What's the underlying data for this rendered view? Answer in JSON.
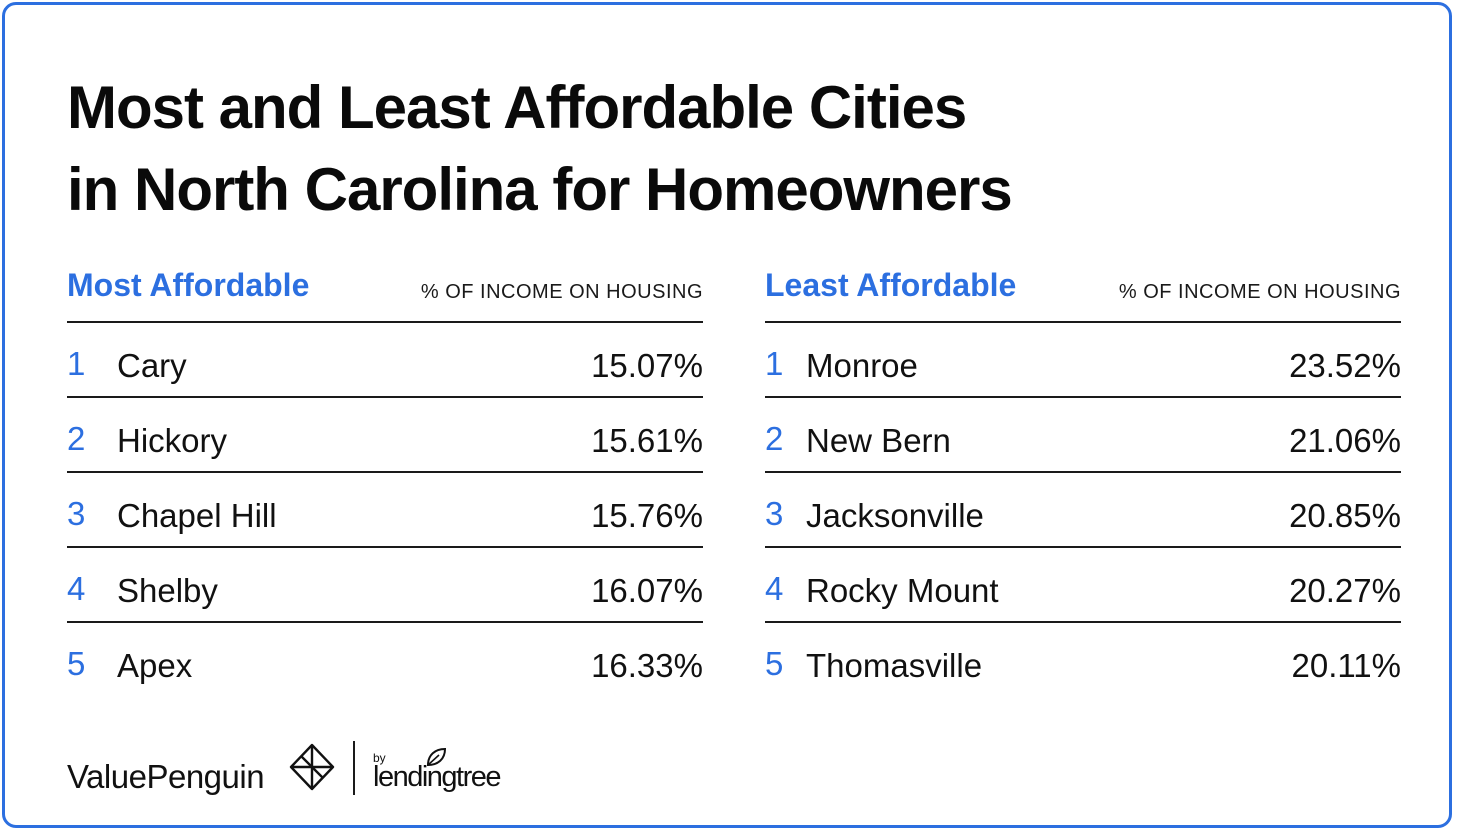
{
  "title": {
    "line1": "Most and Least Affordable Cities",
    "line2": "in North Carolina for Homeowners"
  },
  "colors": {
    "accent": "#2c6fe0",
    "text": "#111111",
    "border": "#2c6fe0"
  },
  "chart_data": [
    {
      "type": "table",
      "title": "Most Affordable",
      "column_header": "% OF INCOME ON HOUSING",
      "rows": [
        {
          "rank": "1",
          "city": "Cary",
          "value": "15.07%"
        },
        {
          "rank": "2",
          "city": "Hickory",
          "value": "15.61%"
        },
        {
          "rank": "3",
          "city": "Chapel Hill",
          "value": "15.76%"
        },
        {
          "rank": "4",
          "city": "Shelby",
          "value": "16.07%"
        },
        {
          "rank": "5",
          "city": "Apex",
          "value": "16.33%"
        }
      ]
    },
    {
      "type": "table",
      "title": "Least Affordable",
      "column_header": "% OF INCOME ON HOUSING",
      "rows": [
        {
          "rank": "1",
          "city": "Monroe",
          "value": "23.52%"
        },
        {
          "rank": "2",
          "city": "New Bern",
          "value": "21.06%"
        },
        {
          "rank": "3",
          "city": "Jacksonville",
          "value": "20.85%"
        },
        {
          "rank": "4",
          "city": "Rocky Mount",
          "value": "20.27%"
        },
        {
          "rank": "5",
          "city": "Thomasville",
          "value": "20.11%"
        }
      ]
    }
  ],
  "branding": {
    "valuepenguin": "ValuePenguin",
    "by": "by",
    "lendingtree": "lendingtree",
    "icons": [
      "valuepenguin-logo-icon",
      "leaf-icon"
    ]
  }
}
